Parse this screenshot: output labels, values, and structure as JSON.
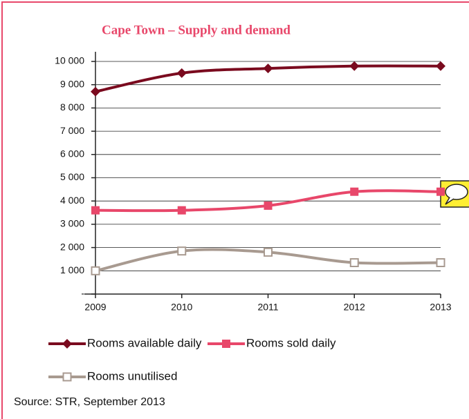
{
  "chart_data": {
    "type": "line",
    "title": "Cape Town – Supply and demand",
    "categories": [
      "2009",
      "2010",
      "2011",
      "2012",
      "2013"
    ],
    "series": [
      {
        "name": "Rooms available daily",
        "color": "#7a0a1e",
        "marker": "diamond",
        "values": [
          8700,
          9500,
          9700,
          9800,
          9800
        ]
      },
      {
        "name": "Rooms sold daily",
        "color": "#e8476a",
        "marker": "square",
        "values": [
          3600,
          3600,
          3800,
          4400,
          4400
        ]
      },
      {
        "name": "Rooms unutilised",
        "color": "#a89a90",
        "marker": "open-square",
        "values": [
          1000,
          1850,
          1800,
          1350,
          1350
        ]
      }
    ],
    "ylim": [
      0,
      10000
    ],
    "yticks": [
      {
        "value": 0,
        "label": "-"
      },
      {
        "value": 1000,
        "label": "1 000"
      },
      {
        "value": 2000,
        "label": "2 000"
      },
      {
        "value": 3000,
        "label": "3 000"
      },
      {
        "value": 4000,
        "label": "4 000"
      },
      {
        "value": 5000,
        "label": "5 000"
      },
      {
        "value": 6000,
        "label": "6 000"
      },
      {
        "value": 7000,
        "label": "7 000"
      },
      {
        "value": 8000,
        "label": "8 000"
      },
      {
        "value": 9000,
        "label": "9 000"
      },
      {
        "value": 10000,
        "label": "10 000"
      }
    ],
    "grid": true,
    "source": "Source: STR, September 2013"
  }
}
